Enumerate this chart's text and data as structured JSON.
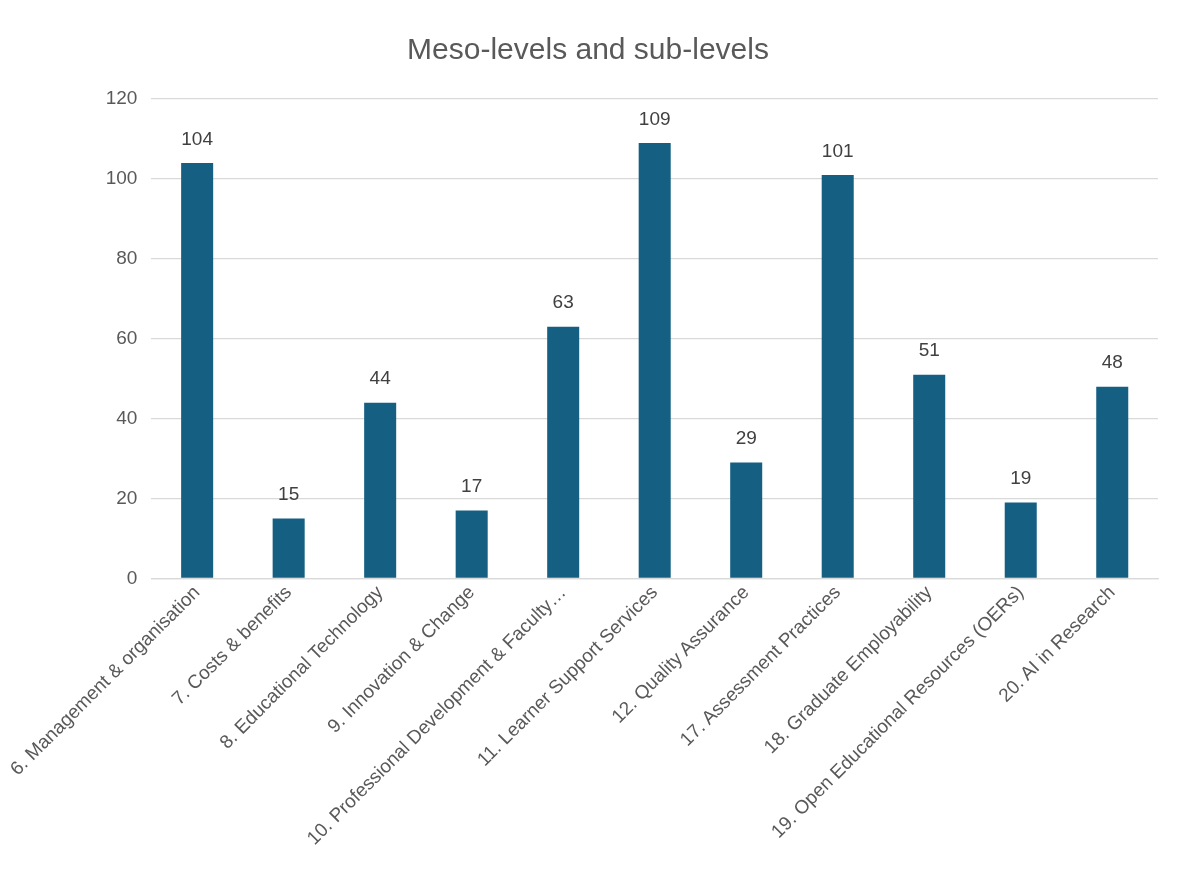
{
  "chart_data": {
    "type": "bar",
    "title": "Meso-levels and sub-levels",
    "categories": [
      "6. Management & organisation",
      "7. Costs & benefits",
      "8. Educational Technology",
      "9. Innovation & Change",
      "10. Professional Development & Faculty…",
      "11. Learner Support Services",
      "12. Quality Assurance",
      "17. Assessment Practices",
      "18. Graduate Employability",
      "19. Open Educational Resources (OERs)",
      "20. AI in Research"
    ],
    "values": [
      104,
      15,
      44,
      17,
      63,
      109,
      29,
      101,
      51,
      19,
      48
    ],
    "color": "#156082",
    "ylim": [
      0,
      120
    ],
    "yticks": [
      0,
      20,
      40,
      60,
      80,
      100,
      120
    ],
    "grid": "y",
    "data_labels": true,
    "legend": false
  }
}
